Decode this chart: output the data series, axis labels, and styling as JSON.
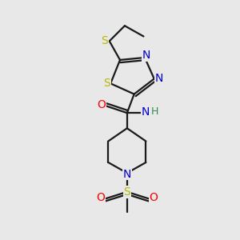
{
  "background_color": "#e8e8e8",
  "bond_color": "#1a1a1a",
  "atom_colors": {
    "S": "#b8b800",
    "N": "#0000cc",
    "O": "#ff0000",
    "H": "#2e8b57",
    "C": "#1a1a1a"
  },
  "figsize": [
    3.0,
    3.0
  ],
  "dpi": 100
}
